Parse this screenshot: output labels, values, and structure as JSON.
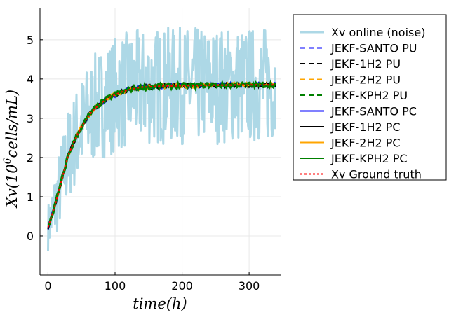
{
  "chart_data": {
    "type": "line",
    "title": "",
    "xlabel": "time(h)",
    "ylabel": "Xv(10^6 cells/mL)",
    "ylabel_parts": {
      "prefix": "Xv(10",
      "sup": "6",
      "suffix": "cells/mL)"
    },
    "xlim": [
      -12,
      347
    ],
    "ylim": [
      -1.0,
      5.8
    ],
    "x_ticks": [
      0,
      100,
      200,
      300
    ],
    "y_ticks": [
      0,
      1,
      2,
      3,
      4,
      5
    ],
    "grid": true,
    "legend_position": "right",
    "ground_truth": {
      "x": [
        0,
        10,
        20,
        30,
        40,
        50,
        60,
        70,
        80,
        90,
        100,
        110,
        120,
        130,
        140,
        150,
        160,
        170,
        180,
        190,
        200,
        210,
        220,
        230,
        240,
        250,
        260,
        270,
        280,
        290,
        300,
        310,
        320,
        330,
        340
      ],
      "y": [
        0.22,
        0.75,
        1.4,
        2.05,
        2.45,
        2.78,
        3.05,
        3.25,
        3.4,
        3.52,
        3.6,
        3.67,
        3.72,
        3.76,
        3.79,
        3.8,
        3.81,
        3.82,
        3.82,
        3.82,
        3.83,
        3.83,
        3.83,
        3.84,
        3.84,
        3.84,
        3.84,
        3.84,
        3.85,
        3.85,
        3.85,
        3.85,
        3.85,
        3.85,
        3.85
      ]
    },
    "noise_band": {
      "x": [
        0,
        10,
        20,
        30,
        50,
        70,
        100,
        150,
        200,
        250,
        300,
        340
      ],
      "amplitude": [
        0.6,
        0.9,
        1.1,
        1.2,
        1.3,
        1.4,
        1.5,
        1.5,
        1.5,
        1.5,
        1.5,
        1.5
      ]
    },
    "series": [
      {
        "name": "Xv online (noise)",
        "color": "#add8e6",
        "style": "solid",
        "width": 3
      },
      {
        "name": "JEKF-SANTO PU",
        "color": "#0000ff",
        "style": "dashed",
        "width": 2
      },
      {
        "name": "JEKF-1H2 PU",
        "color": "#000000",
        "style": "dashed",
        "width": 2
      },
      {
        "name": "JEKF-2H2 PU",
        "color": "#ffa500",
        "style": "dashed",
        "width": 2
      },
      {
        "name": "JEKF-KPH2 PU",
        "color": "#008000",
        "style": "dashed",
        "width": 2
      },
      {
        "name": "JEKF-SANTO PC",
        "color": "#0000ff",
        "style": "solid",
        "width": 2
      },
      {
        "name": "JEKF-1H2 PC",
        "color": "#000000",
        "style": "solid",
        "width": 2
      },
      {
        "name": "JEKF-2H2 PC",
        "color": "#ffa500",
        "style": "solid",
        "width": 2
      },
      {
        "name": "JEKF-KPH2 PC",
        "color": "#008000",
        "style": "solid",
        "width": 2
      },
      {
        "name": "Xv Ground truth",
        "color": "#ff0000",
        "style": "dotted",
        "width": 2
      }
    ]
  }
}
